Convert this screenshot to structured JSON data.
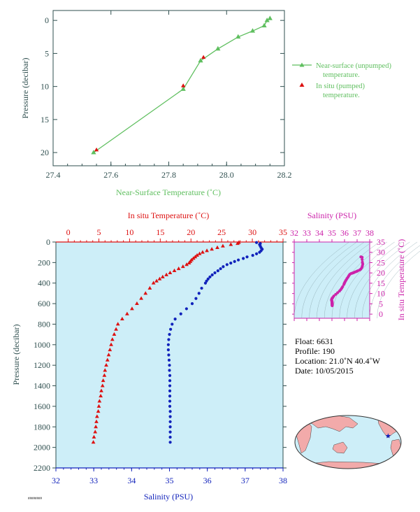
{
  "colors": {
    "axis_dark": "#2f4f4f",
    "near_surface_line": "#5fbf5f",
    "in_situ_red": "#dd1111",
    "salinity_blue": "#1122bb",
    "magenta": "#cc22aa",
    "panel_bg": "#cdeef8",
    "land": "#f2aaaa",
    "ocean": "#cdeef8"
  },
  "chart_data": [
    {
      "type": "line",
      "id": "near_surface",
      "xlabel": "Near-Surface Temperature (˚C)",
      "ylabel": "Pressure (decibar)",
      "xlim": [
        27.4,
        28.2
      ],
      "ylim": [
        22,
        -1.5
      ],
      "xticks": [
        27.4,
        27.6,
        27.8,
        28.0,
        28.2
      ],
      "xtick_labels": [
        "27.4",
        "27.6",
        "27.8",
        "28.0",
        "28.2"
      ],
      "yticks": [
        0,
        5,
        10,
        15,
        20
      ],
      "ytick_labels": [
        "0",
        "5",
        "10",
        "15",
        "20"
      ],
      "legend": "right",
      "series": [
        {
          "name": "Near-surface (unpumped) temperature.",
          "legend_lines": [
            "Near-surface (unpumped)",
            "temperature."
          ],
          "marker": "triangle",
          "line": true,
          "x": [
            28.15,
            28.14,
            28.13,
            28.09,
            28.04,
            27.97,
            27.91,
            27.85,
            27.54
          ],
          "y": [
            -0.3,
            0.0,
            0.8,
            1.6,
            2.5,
            4.3,
            6.1,
            10.4,
            20.0
          ]
        },
        {
          "name": "In situ (pumped) temperature.",
          "legend_lines": [
            "In situ (pumped)",
            "temperature."
          ],
          "marker": "triangle",
          "line": false,
          "x": [
            27.92,
            27.85,
            27.55
          ],
          "y": [
            5.6,
            9.9,
            19.6
          ]
        }
      ]
    },
    {
      "type": "scatter",
      "id": "profile",
      "ylabel": "Pressure (decibar)",
      "ylim": [
        2200,
        0
      ],
      "yticks": [
        0,
        200,
        400,
        600,
        800,
        1000,
        1200,
        1400,
        1600,
        1800,
        2000,
        2200
      ],
      "ytick_labels": [
        "0",
        "200",
        "400",
        "600",
        "800",
        "1000",
        "1200",
        "1400",
        "1600",
        "1800",
        "2000",
        "2200"
      ],
      "top_axis": {
        "label": "In situ Temperature (˚C)",
        "lim": [
          -2,
          35
        ],
        "ticks": [
          0,
          5,
          10,
          15,
          20,
          25,
          30,
          35
        ],
        "tick_labels": [
          "0",
          "5",
          "10",
          "15",
          "20",
          "25",
          "30",
          "35"
        ]
      },
      "bottom_axis": {
        "label": "Salinity (PSU)",
        "lim": [
          32,
          38
        ],
        "ticks": [
          32,
          33,
          34,
          35,
          36,
          37,
          38
        ],
        "tick_labels": [
          "32",
          "33",
          "34",
          "35",
          "36",
          "37",
          "38"
        ]
      },
      "series": [
        {
          "name": "In situ Temperature",
          "axis": "top",
          "marker": "triangle",
          "pressure": [
            5,
            15,
            25,
            40,
            55,
            70,
            85,
            100,
            115,
            130,
            145,
            160,
            175,
            190,
            205,
            220,
            240,
            260,
            280,
            300,
            320,
            340,
            360,
            380,
            400,
            450,
            500,
            550,
            600,
            650,
            700,
            750,
            800,
            850,
            900,
            950,
            1000,
            1050,
            1100,
            1150,
            1200,
            1250,
            1300,
            1350,
            1400,
            1450,
            1500,
            1550,
            1600,
            1650,
            1700,
            1750,
            1800,
            1850,
            1900,
            1950
          ],
          "values": [
            27.8,
            27.6,
            26.5,
            25.2,
            24.3,
            23.4,
            22.6,
            21.9,
            21.4,
            21.0,
            20.7,
            20.4,
            20.1,
            19.9,
            19.7,
            19.3,
            18.7,
            18.0,
            17.3,
            16.6,
            16.0,
            15.4,
            14.9,
            14.4,
            13.9,
            13.3,
            12.6,
            11.9,
            11.2,
            10.4,
            9.6,
            8.8,
            8.1,
            7.8,
            7.5,
            7.2,
            7.0,
            6.8,
            6.6,
            6.4,
            6.2,
            6.0,
            5.9,
            5.7,
            5.6,
            5.4,
            5.3,
            5.1,
            5.0,
            4.9,
            4.7,
            4.6,
            4.5,
            4.4,
            4.2,
            4.1
          ]
        },
        {
          "name": "Salinity",
          "axis": "bottom",
          "marker": "circle",
          "pressure": [
            5,
            15,
            25,
            40,
            55,
            70,
            85,
            100,
            115,
            130,
            145,
            160,
            175,
            190,
            205,
            220,
            240,
            260,
            280,
            300,
            320,
            340,
            360,
            380,
            400,
            450,
            500,
            550,
            600,
            650,
            700,
            750,
            800,
            850,
            900,
            950,
            1000,
            1050,
            1100,
            1150,
            1200,
            1250,
            1300,
            1350,
            1400,
            1450,
            1500,
            1550,
            1600,
            1650,
            1700,
            1750,
            1800,
            1850,
            1900,
            1950
          ],
          "values": [
            37.3,
            37.4,
            37.38,
            37.4,
            37.42,
            37.45,
            37.42,
            37.38,
            37.3,
            37.2,
            37.05,
            36.95,
            36.82,
            36.72,
            36.62,
            36.52,
            36.42,
            36.35,
            36.28,
            36.2,
            36.13,
            36.07,
            36.02,
            35.98,
            35.95,
            35.85,
            35.78,
            35.7,
            35.6,
            35.45,
            35.3,
            35.15,
            35.07,
            35.03,
            35.0,
            34.98,
            34.97,
            34.97,
            34.98,
            34.99,
            35.0,
            35.0,
            35.01,
            35.01,
            35.01,
            35.01,
            35.01,
            35.01,
            35.01,
            35.02,
            35.02,
            35.02,
            35.02,
            35.02,
            35.02,
            35.02
          ]
        }
      ]
    },
    {
      "type": "scatter",
      "id": "ts_diagram",
      "title": "Salinity (PSU)",
      "ylabel": "In situ Temperature (˚C)",
      "xlim": [
        32,
        38
      ],
      "ylim": [
        -2,
        35
      ],
      "xticks": [
        32,
        33,
        34,
        35,
        36,
        37,
        38
      ],
      "xtick_labels": [
        "32",
        "33",
        "34",
        "35",
        "36",
        "37",
        "38"
      ],
      "yticks": [
        0,
        5,
        10,
        15,
        20,
        25,
        30,
        35
      ],
      "ytick_labels": [
        "0",
        "5",
        "10",
        "15",
        "20",
        "25",
        "30",
        "35"
      ],
      "series": [
        {
          "name": "T-S profile",
          "marker": "circle",
          "x": [
            37.3,
            37.4,
            37.4,
            37.42,
            37.45,
            37.42,
            37.38,
            37.3,
            37.2,
            37.05,
            36.95,
            36.82,
            36.72,
            36.62,
            36.52,
            36.42,
            36.35,
            36.28,
            36.2,
            36.13,
            36.07,
            36.02,
            35.98,
            35.95,
            35.85,
            35.78,
            35.7,
            35.6,
            35.45,
            35.3,
            35.15,
            35.07,
            35.03,
            35.0,
            34.98,
            34.97,
            34.97,
            34.98,
            34.99,
            35.0,
            35.0,
            35.01,
            35.01,
            35.01,
            35.01,
            35.01,
            35.01,
            35.01,
            35.02,
            35.02,
            35.02,
            35.02,
            35.02,
            35.02,
            35.02
          ],
          "y": [
            27.8,
            27.6,
            26.5,
            25.2,
            24.3,
            23.4,
            22.6,
            21.9,
            21.4,
            21.0,
            20.7,
            20.4,
            20.1,
            19.9,
            19.7,
            19.3,
            18.7,
            18.0,
            17.3,
            16.6,
            16.0,
            15.4,
            14.9,
            14.4,
            13.3,
            12.6,
            11.9,
            11.2,
            10.4,
            9.6,
            8.8,
            8.1,
            7.8,
            7.5,
            7.2,
            7.0,
            6.8,
            6.6,
            6.4,
            6.2,
            6.0,
            5.9,
            5.7,
            5.6,
            5.4,
            5.3,
            5.1,
            5.0,
            4.9,
            4.7,
            4.6,
            4.5,
            4.4,
            4.2,
            4.1
          ]
        }
      ]
    }
  ],
  "info": {
    "float": "Float:  6631",
    "profile": "Profile:  190",
    "location": "Location:  21.0˚N  40.4˚W",
    "date": "Date:  10/05/2015"
  },
  "map": {
    "float_lon": -40.4,
    "float_lat": 21.0
  },
  "footer": {
    "stamp": "########"
  }
}
